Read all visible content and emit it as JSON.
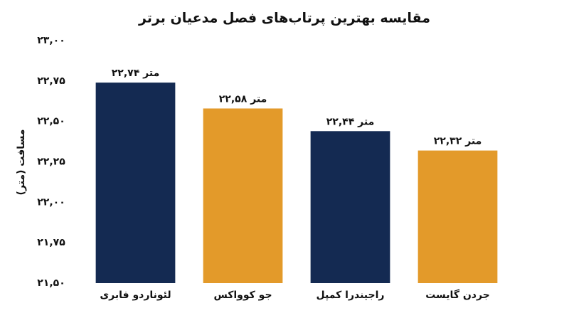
{
  "chart_data": {
    "type": "bar",
    "title": "مقایسه بهترین پرتاب‌های فصل مدعیان برتر",
    "y_label": "مسافت (متر)",
    "categories": [
      "لئوناردو فابری",
      "جو کوواکس",
      "راجیندرا کمپل",
      "جردن گایست"
    ],
    "values": [
      22.74,
      22.58,
      22.44,
      22.32
    ],
    "value_labels": [
      "۲۲,۷۴ متر",
      "۲۲,۵۸ متر",
      "۲۲,۴۴ متر",
      "۲۲,۳۲ متر"
    ],
    "colors": [
      "#142a52",
      "#e39a2a",
      "#142a52",
      "#e39a2a"
    ],
    "ylim": [
      21.5,
      23
    ],
    "yticks": [
      {
        "value": 23,
        "label": "۲۳,۰۰"
      },
      {
        "value": 22.75,
        "label": "۲۲,۷۵"
      },
      {
        "value": 22.5,
        "label": "۲۲,۵۰"
      },
      {
        "value": 22.25,
        "label": "۲۲,۲۵"
      },
      {
        "value": 22,
        "label": "۲۲,۰۰"
      },
      {
        "value": 21.75,
        "label": "۲۱,۷۵"
      },
      {
        "value": 21.5,
        "label": "۲۱,۵۰"
      }
    ],
    "grid": false
  }
}
